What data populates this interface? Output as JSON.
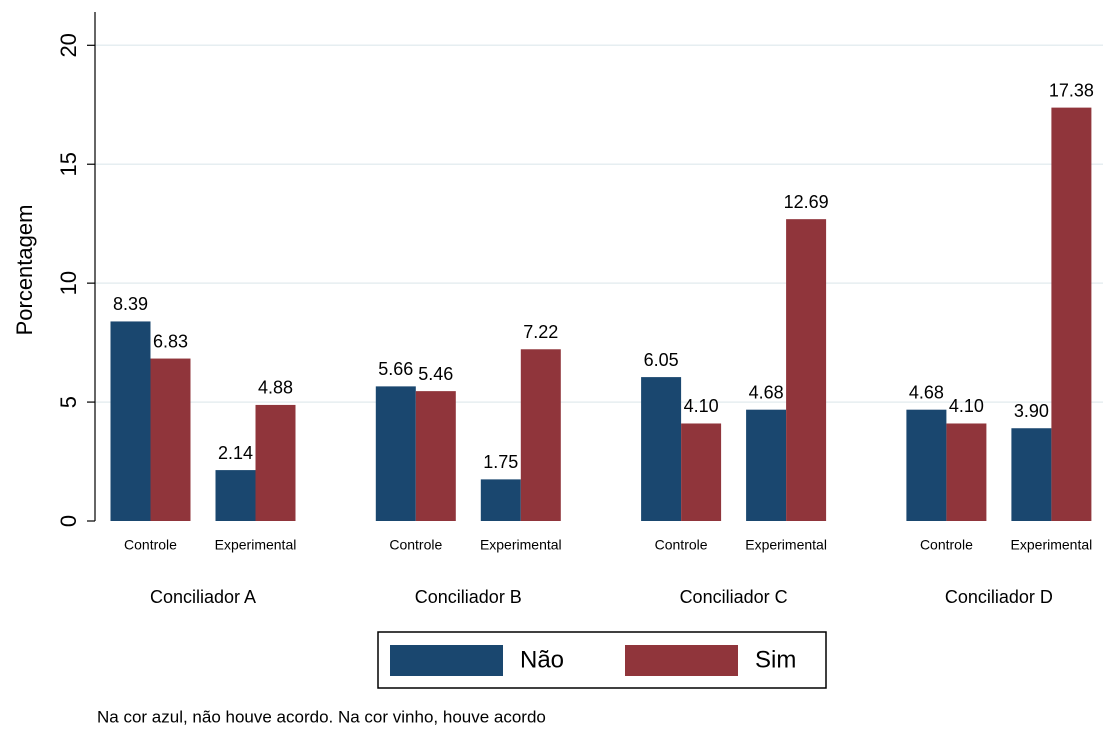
{
  "chart_data": {
    "type": "bar",
    "ylabel": "Porcentagem",
    "groups": [
      "Conciliador A",
      "Conciliador B",
      "Conciliador C",
      "Conciliador D"
    ],
    "categories": [
      "Controle",
      "Experimental",
      "Controle",
      "Experimental",
      "Controle",
      "Experimental",
      "Controle",
      "Experimental"
    ],
    "series": [
      {
        "name": "Não",
        "color": "#1a476f",
        "values": [
          8.39,
          2.14,
          5.66,
          1.75,
          6.05,
          4.68,
          4.68,
          3.9
        ],
        "value_labels": [
          "8.39",
          "2.14",
          "5.66",
          "1.75",
          "6.05",
          "4.68",
          "4.68",
          "3.90"
        ]
      },
      {
        "name": "Sim",
        "color": "#90353b",
        "values": [
          6.83,
          4.88,
          5.46,
          7.22,
          4.1,
          12.69,
          4.1,
          17.38
        ],
        "value_labels": [
          "6.83",
          "4.88",
          "5.46",
          "7.22",
          "4.10",
          "12.69",
          "4.10",
          "17.38"
        ]
      }
    ],
    "ylim": [
      0,
      21.4
    ],
    "yticks": [
      0,
      5,
      10,
      15,
      20
    ],
    "grid": true,
    "legend": "bottom",
    "note": "Na cor azul, não houve acordo. Na cor vinho, houve acordo"
  }
}
